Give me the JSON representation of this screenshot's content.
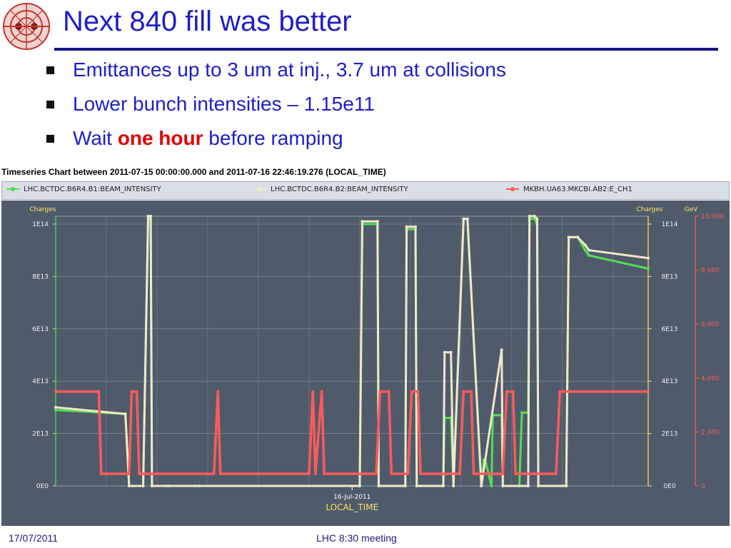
{
  "slide": {
    "title": "Next 840 fill was better",
    "bullets": [
      {
        "text": "Emittances up to 3 um at inj., 3.7 um at collisions"
      },
      {
        "text": "Lower bunch intensities – 1.15e11"
      },
      {
        "pre": "Wait ",
        "highlight": "one hour",
        "post": " before ramping"
      }
    ],
    "highlight_color": "#e00000"
  },
  "timeseries": {
    "header": "Timeseries Chart between 2011-07-15 00:00:00.000 and 2011-07-16 22:46:19.276 (LOCAL_TIME)",
    "legend": [
      {
        "label": "LHC.BCTDC.B6R4.B1:BEAM_INTENSITY",
        "color": "#55dd55"
      },
      {
        "label": "LHC.BCTDC.B6R4.B2:BEAM_INTENSITY",
        "color": "#f0e8c8"
      },
      {
        "label": "MKBH.UA63.MKCBI.AB2:E_CH1",
        "color": "#ff5a5a"
      }
    ]
  },
  "chart_data": {
    "type": "line",
    "title": "Timeseries Chart between 2011-07-15 00:00:00.000 and 2011-07-16 22:46:19.276 (LOCAL_TIME)",
    "xlabel": "LOCAL_TIME",
    "x_tick_labels": [
      "16-Jul-2011"
    ],
    "left_axis": {
      "label": "Charges",
      "ticks": [
        "0E0",
        "2E13",
        "4E13",
        "6E13",
        "8E13",
        "1E14"
      ],
      "ylim": [
        0,
        103000000000000.0
      ]
    },
    "right_axis_charges": {
      "label": "Charges",
      "ticks": [
        "0E0",
        "2E13",
        "4E13",
        "6E13",
        "8E13",
        "1E14"
      ]
    },
    "right_axis_energy": {
      "label": "GeV",
      "ticks": [
        "0",
        "2,000",
        "4,000",
        "6,000",
        "8,000",
        "10,000"
      ],
      "ylim": [
        0,
        10000
      ]
    },
    "x_range_hours": [
      0,
      46.77
    ],
    "series": [
      {
        "name": "LHC.BCTDC.B6R4.B1:BEAM_INTENSITY",
        "axis": "left",
        "color": "#55dd55",
        "x": [
          0,
          5.5,
          5.8,
          6.9,
          7.3,
          7.5,
          7.6,
          8.7,
          8.9,
          11,
          11.3,
          24,
          24.2,
          25.4,
          25.5,
          27.6,
          27.7,
          28.4,
          28.5,
          30.6,
          30.7,
          31.2,
          31.4,
          32.2,
          32.5,
          33.6,
          33.8,
          33.9,
          34.4,
          34.5,
          35.2,
          35.3,
          36.6,
          36.8,
          37.3,
          37.4,
          37.8,
          38.0,
          38.1,
          40.0,
          40.3,
          40.5,
          41.2,
          41.8,
          42.1,
          46.77
        ],
        "values": [
          29000000000000.0,
          27500000000000.0,
          0,
          0,
          102000000000000.0,
          102000000000000.0,
          0,
          0,
          0,
          0,
          0,
          0,
          100000000000000.0,
          100000000000000.0,
          0,
          0,
          98000000000000.0,
          98000000000000.0,
          0,
          0,
          26000000000000.0,
          26000000000000.0,
          0,
          102000000000000.0,
          102000000000000.0,
          0,
          10000000000000.0,
          10000000000000.0,
          0,
          27000000000000.0,
          27000000000000.0,
          0,
          0,
          28000000000000.0,
          28000000000000.0,
          102000000000000.0,
          102000000000000.0,
          100000000000000.0,
          0,
          0,
          0,
          95000000000000.0,
          95000000000000.0,
          90000000000000.0,
          88000000000000.0,
          83000000000000.0
        ]
      },
      {
        "name": "LHC.BCTDC.B6R4.B2:BEAM_INTENSITY",
        "axis": "left",
        "color": "#f0e8c8",
        "x": [
          0,
          5.5,
          5.8,
          6.9,
          7.3,
          7.5,
          7.6,
          24,
          24.2,
          25.4,
          25.5,
          27.6,
          27.7,
          28.4,
          28.5,
          30.6,
          30.7,
          31.2,
          31.4,
          32.2,
          32.5,
          33.6,
          35.2,
          35.3,
          37.3,
          37.4,
          37.8,
          38.0,
          38.1,
          40.3,
          40.5,
          41.2,
          41.8,
          42.1,
          46.77
        ],
        "values": [
          30000000000000.0,
          27500000000000.0,
          0,
          0,
          103000000000000.0,
          103000000000000.0,
          0,
          0,
          101000000000000.0,
          101000000000000.0,
          0,
          0,
          99000000000000.0,
          99000000000000.0,
          0,
          0,
          51000000000000.0,
          51000000000000.0,
          0,
          102000000000000.0,
          102000000000000.0,
          0,
          52000000000000.0,
          0,
          0,
          103000000000000.0,
          103000000000000.0,
          102000000000000.0,
          0,
          0,
          95000000000000.0,
          95000000000000.0,
          92000000000000.0,
          90000000000000.0,
          87000000000000.0
        ]
      },
      {
        "name": "MKBH.UA63.MKCBI.AB2:E_CH1",
        "axis": "right",
        "color": "#ff5a5a",
        "x": [
          0,
          3.4,
          3.6,
          5.8,
          6.0,
          6.4,
          6.6,
          12.5,
          12.8,
          13.0,
          20.0,
          20.3,
          20.5,
          21.0,
          21.2,
          25.3,
          25.6,
          26.3,
          26.5,
          27.8,
          28.1,
          28.6,
          28.8,
          31.9,
          32.2,
          32.8,
          33.0,
          35.3,
          35.6,
          36.1,
          36.3,
          39.5,
          39.8,
          40.1,
          40.3,
          46.77
        ],
        "values": [
          3500,
          3500,
          450,
          450,
          3500,
          3500,
          450,
          450,
          3500,
          450,
          450,
          3500,
          450,
          3500,
          450,
          450,
          3500,
          3500,
          450,
          450,
          3500,
          3500,
          450,
          450,
          3500,
          3500,
          450,
          450,
          3500,
          3500,
          450,
          450,
          3500,
          3500,
          3500,
          3500
        ]
      }
    ],
    "grid": true
  },
  "footer": {
    "date": "17/07/2011",
    "center": "LHC 8:30 meeting"
  }
}
